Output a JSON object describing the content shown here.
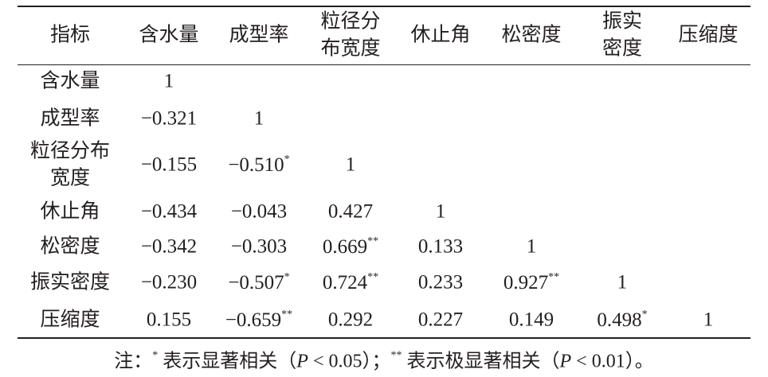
{
  "table": {
    "header": [
      [
        "指标"
      ],
      [
        "含水量"
      ],
      [
        "成型率"
      ],
      [
        "粒径分",
        "布宽度"
      ],
      [
        "休止角"
      ],
      [
        "松密度"
      ],
      [
        "振实",
        "密度"
      ],
      [
        "压缩度"
      ]
    ],
    "rows": [
      {
        "label": [
          "含水量"
        ],
        "cells": [
          {
            "text": "1"
          }
        ]
      },
      {
        "label": [
          "成型率"
        ],
        "cells": [
          {
            "text": "−0.321"
          },
          {
            "text": "1"
          }
        ]
      },
      {
        "label": [
          "粒径分布",
          "宽度"
        ],
        "cells": [
          {
            "text": "−0.155"
          },
          {
            "text": "−0.510",
            "sup": "*"
          },
          {
            "text": "1"
          }
        ]
      },
      {
        "label": [
          "休止角"
        ],
        "cells": [
          {
            "text": "−0.434"
          },
          {
            "text": "−0.043"
          },
          {
            "text": "0.427"
          },
          {
            "text": "1"
          }
        ]
      },
      {
        "label": [
          "松密度"
        ],
        "cells": [
          {
            "text": "−0.342"
          },
          {
            "text": "−0.303"
          },
          {
            "text": "0.669",
            "sup": "**"
          },
          {
            "text": "0.133"
          },
          {
            "text": "1"
          }
        ]
      },
      {
        "label": [
          "振实密度"
        ],
        "cells": [
          {
            "text": "−0.230"
          },
          {
            "text": "−0.507",
            "sup": "*"
          },
          {
            "text": "0.724",
            "sup": "**"
          },
          {
            "text": "0.233"
          },
          {
            "text": "0.927",
            "sup": "**"
          },
          {
            "text": "1"
          }
        ]
      },
      {
        "label": [
          "压缩度"
        ],
        "cells": [
          {
            "text": "0.155"
          },
          {
            "text": "−0.659",
            "sup": "**"
          },
          {
            "text": "0.292"
          },
          {
            "text": "0.227"
          },
          {
            "text": "0.149"
          },
          {
            "text": "0.498",
            "sup": "*"
          },
          {
            "text": "1"
          }
        ]
      }
    ]
  },
  "note": [
    {
      "text": "注：",
      "style": "normal"
    },
    {
      "text": "*",
      "style": "sup"
    },
    {
      "text": " 表示显著相关（",
      "style": "normal"
    },
    {
      "text": "P",
      "style": "italic"
    },
    {
      "text": " < 0.05）；",
      "style": "normal"
    },
    {
      "text": "**",
      "style": "sup"
    },
    {
      "text": " 表示极显著相关（",
      "style": "normal"
    },
    {
      "text": "P",
      "style": "italic"
    },
    {
      "text": " < 0.01）。",
      "style": "normal"
    }
  ]
}
